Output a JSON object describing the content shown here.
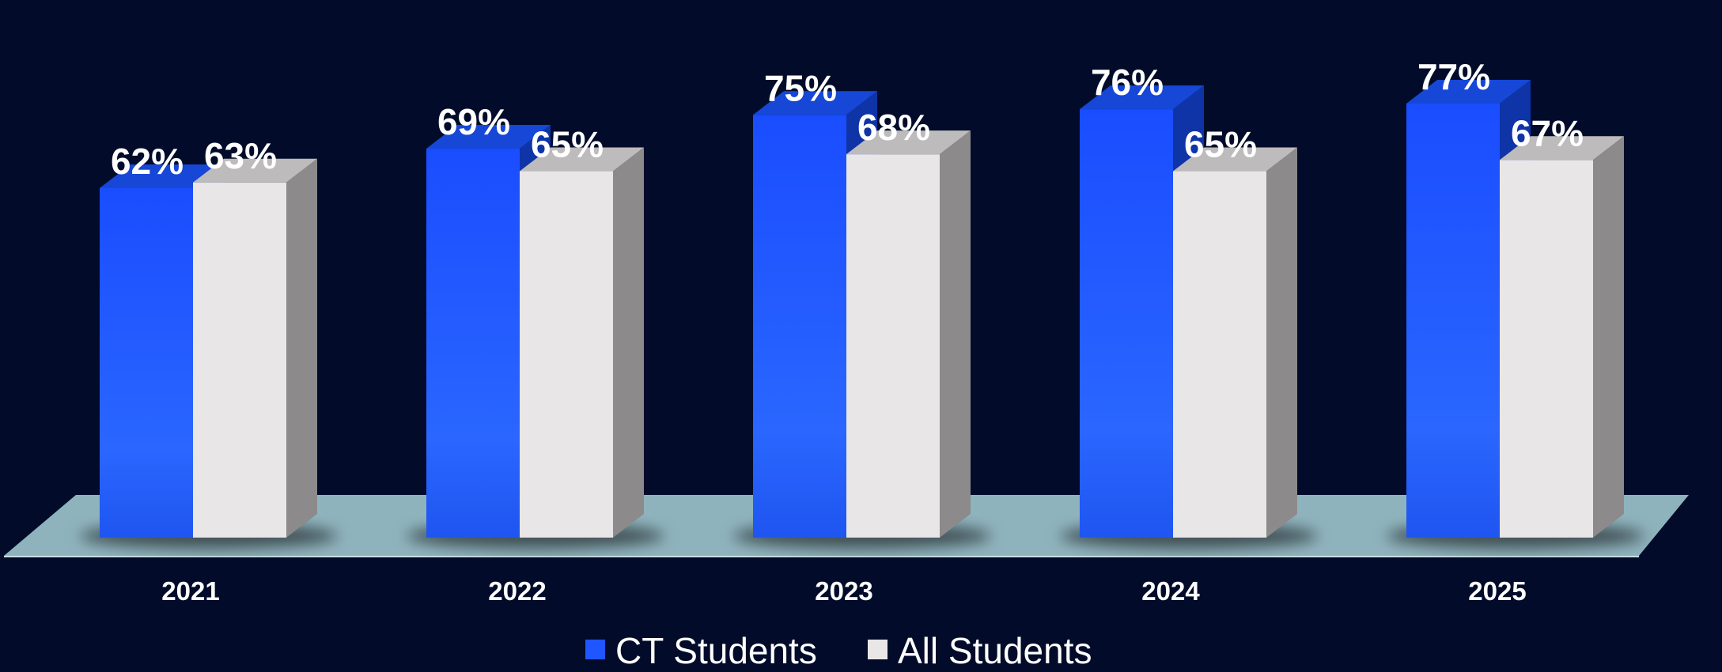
{
  "chart_data": {
    "type": "bar",
    "style": "3d-clustered-column",
    "categories": [
      "2021",
      "2022",
      "2023",
      "2024",
      "2025"
    ],
    "series": [
      {
        "name": "CT Students",
        "values": [
          62,
          69,
          75,
          76,
          77
        ],
        "labels": [
          "62%",
          "69%",
          "75%",
          "76%",
          "77%"
        ],
        "color": "#1f56ff"
      },
      {
        "name": "All Students",
        "values": [
          63,
          65,
          68,
          65,
          67
        ],
        "labels": [
          "63%",
          "65%",
          "68%",
          "65%",
          "67%"
        ],
        "color": "#e8e6e6"
      }
    ],
    "ylim": [
      0,
      100
    ],
    "value_unit": "%",
    "grid": false,
    "legend_position": "bottom",
    "background_color": "#020c2a",
    "floor_color": "#8fb3bd"
  }
}
